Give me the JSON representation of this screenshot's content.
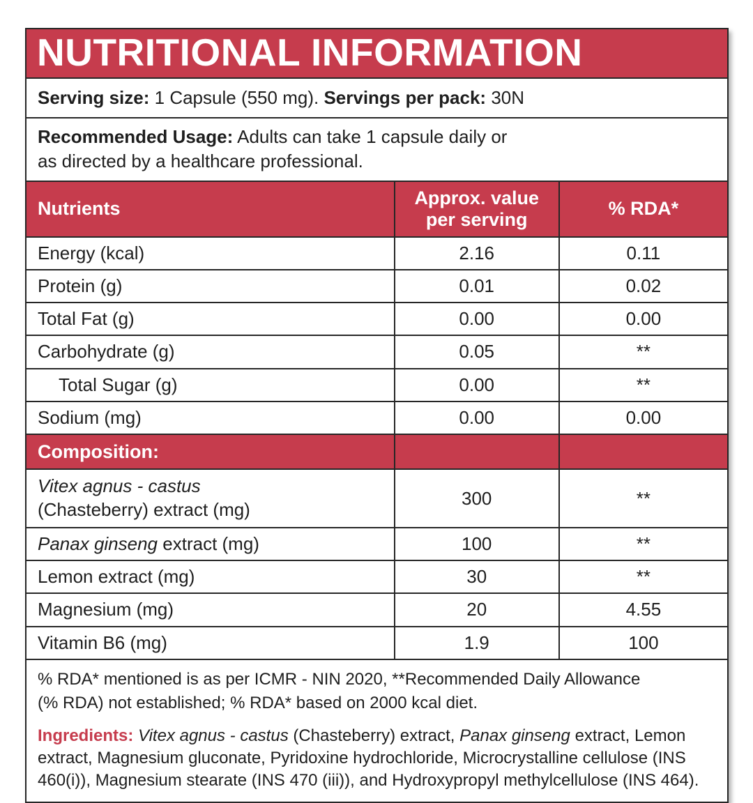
{
  "colors": {
    "accent_red": "#C63C4D",
    "text": "#1E1E1E",
    "border": "#262626"
  },
  "title": "NUTRITIONAL INFORMATION",
  "serving": {
    "size_label": "Serving size:",
    "size_value": "1 Capsule (550 mg).",
    "pack_label": "Servings per pack:",
    "pack_value": "30N"
  },
  "usage": {
    "label": "Recommended Usage:",
    "text_line1": "Adults can take 1 capsule daily or",
    "text_line2": "as directed by a healthcare professional."
  },
  "table": {
    "headers": {
      "nutrients": "Nutrients",
      "value": "Approx. value per serving",
      "rda": "% RDA*"
    },
    "rows": [
      {
        "name": "Energy (kcal)",
        "value": "2.16",
        "rda": "0.11"
      },
      {
        "name": "Protein (g)",
        "value": "0.01",
        "rda": "0.02"
      },
      {
        "name": "Total Fat (g)",
        "value": "0.00",
        "rda": "0.00"
      },
      {
        "name": "Carbohydrate (g)",
        "value": "0.05",
        "rda": "**"
      },
      {
        "name": "Total Sugar (g)",
        "value": "0.00",
        "rda": "**"
      },
      {
        "name": "Sodium (mg)",
        "value": "0.00",
        "rda": "0.00"
      }
    ],
    "section_label": "Composition:",
    "comp_rows": [
      {
        "name_italic": "Vitex agnus - castus",
        "name_rest": "(Chasteberry) extract (mg)",
        "value": "300",
        "rda": "**"
      },
      {
        "name_italic": "Panax ginseng",
        "name_rest": "extract (mg)",
        "value": "100",
        "rda": "**"
      },
      {
        "name": "Lemon extract (mg)",
        "value": "30",
        "rda": "**"
      },
      {
        "name": "Magnesium (mg)",
        "value": "20",
        "rda": "4.55"
      },
      {
        "name": "Vitamin B6 (mg)",
        "value": "1.9",
        "rda": "100"
      }
    ]
  },
  "rda_note": {
    "line1": "% RDA* mentioned is as per ICMR - NIN 2020, **Recommended Daily Allowance",
    "line2": "(% RDA) not established; % RDA* based on 2000 kcal diet."
  },
  "ingredients": {
    "label": "Ingredients:",
    "seg1_italic": "Vitex agnus - castus",
    "seg2": "(Chasteberry) extract,",
    "seg3_italic": "Panax ginseng",
    "seg4": "extract, Lemon extract, Magnesium gluconate, Pyridoxine hydrochloride, Microcrystalline cellulose (INS 460(i)), Magnesium stearate (INS 470 (iii)), and Hydroxypropyl methylcellulose (INS 464)."
  }
}
